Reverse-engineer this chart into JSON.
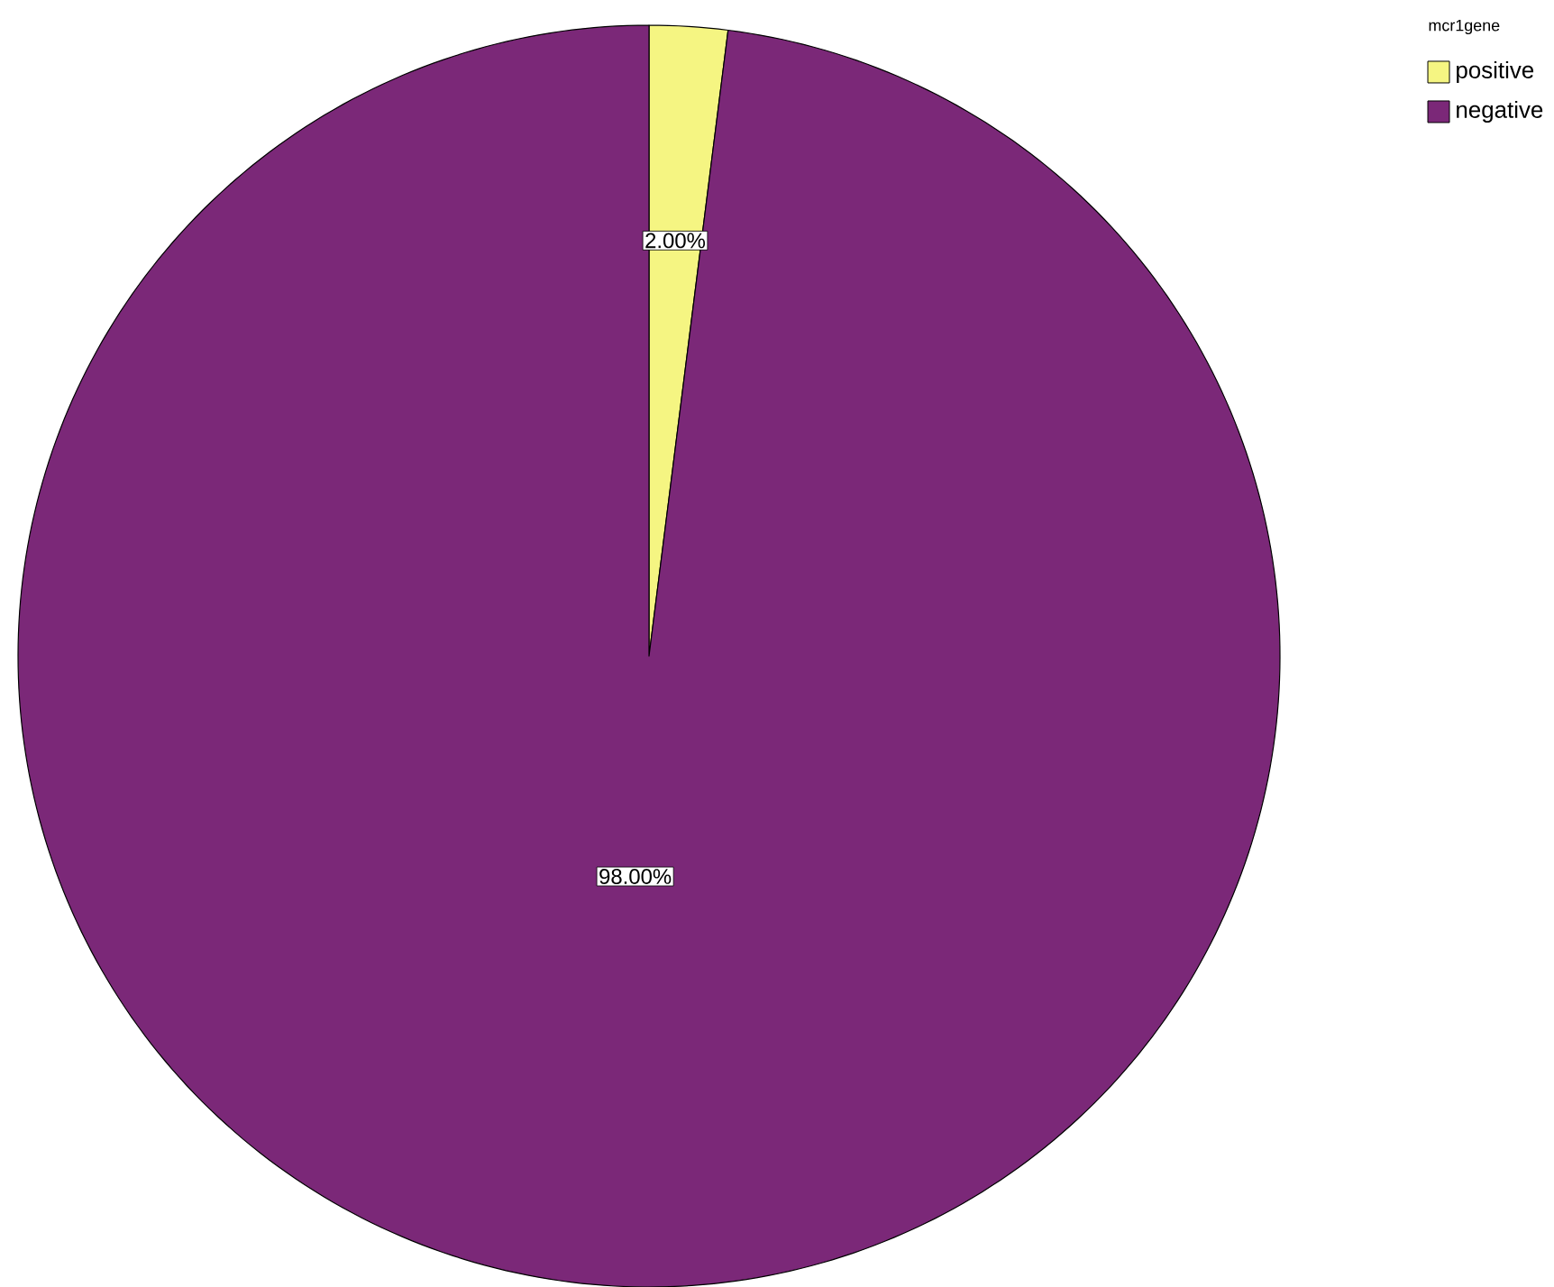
{
  "chart_data": {
    "type": "pie",
    "legend_title": "mcr1gene",
    "categories": [
      "positive",
      "negative"
    ],
    "values": [
      2,
      98
    ],
    "value_labels": [
      "2.00%",
      "98.00%"
    ],
    "colors": [
      "#f5f582",
      "#7b2878"
    ],
    "legend": "top right"
  }
}
